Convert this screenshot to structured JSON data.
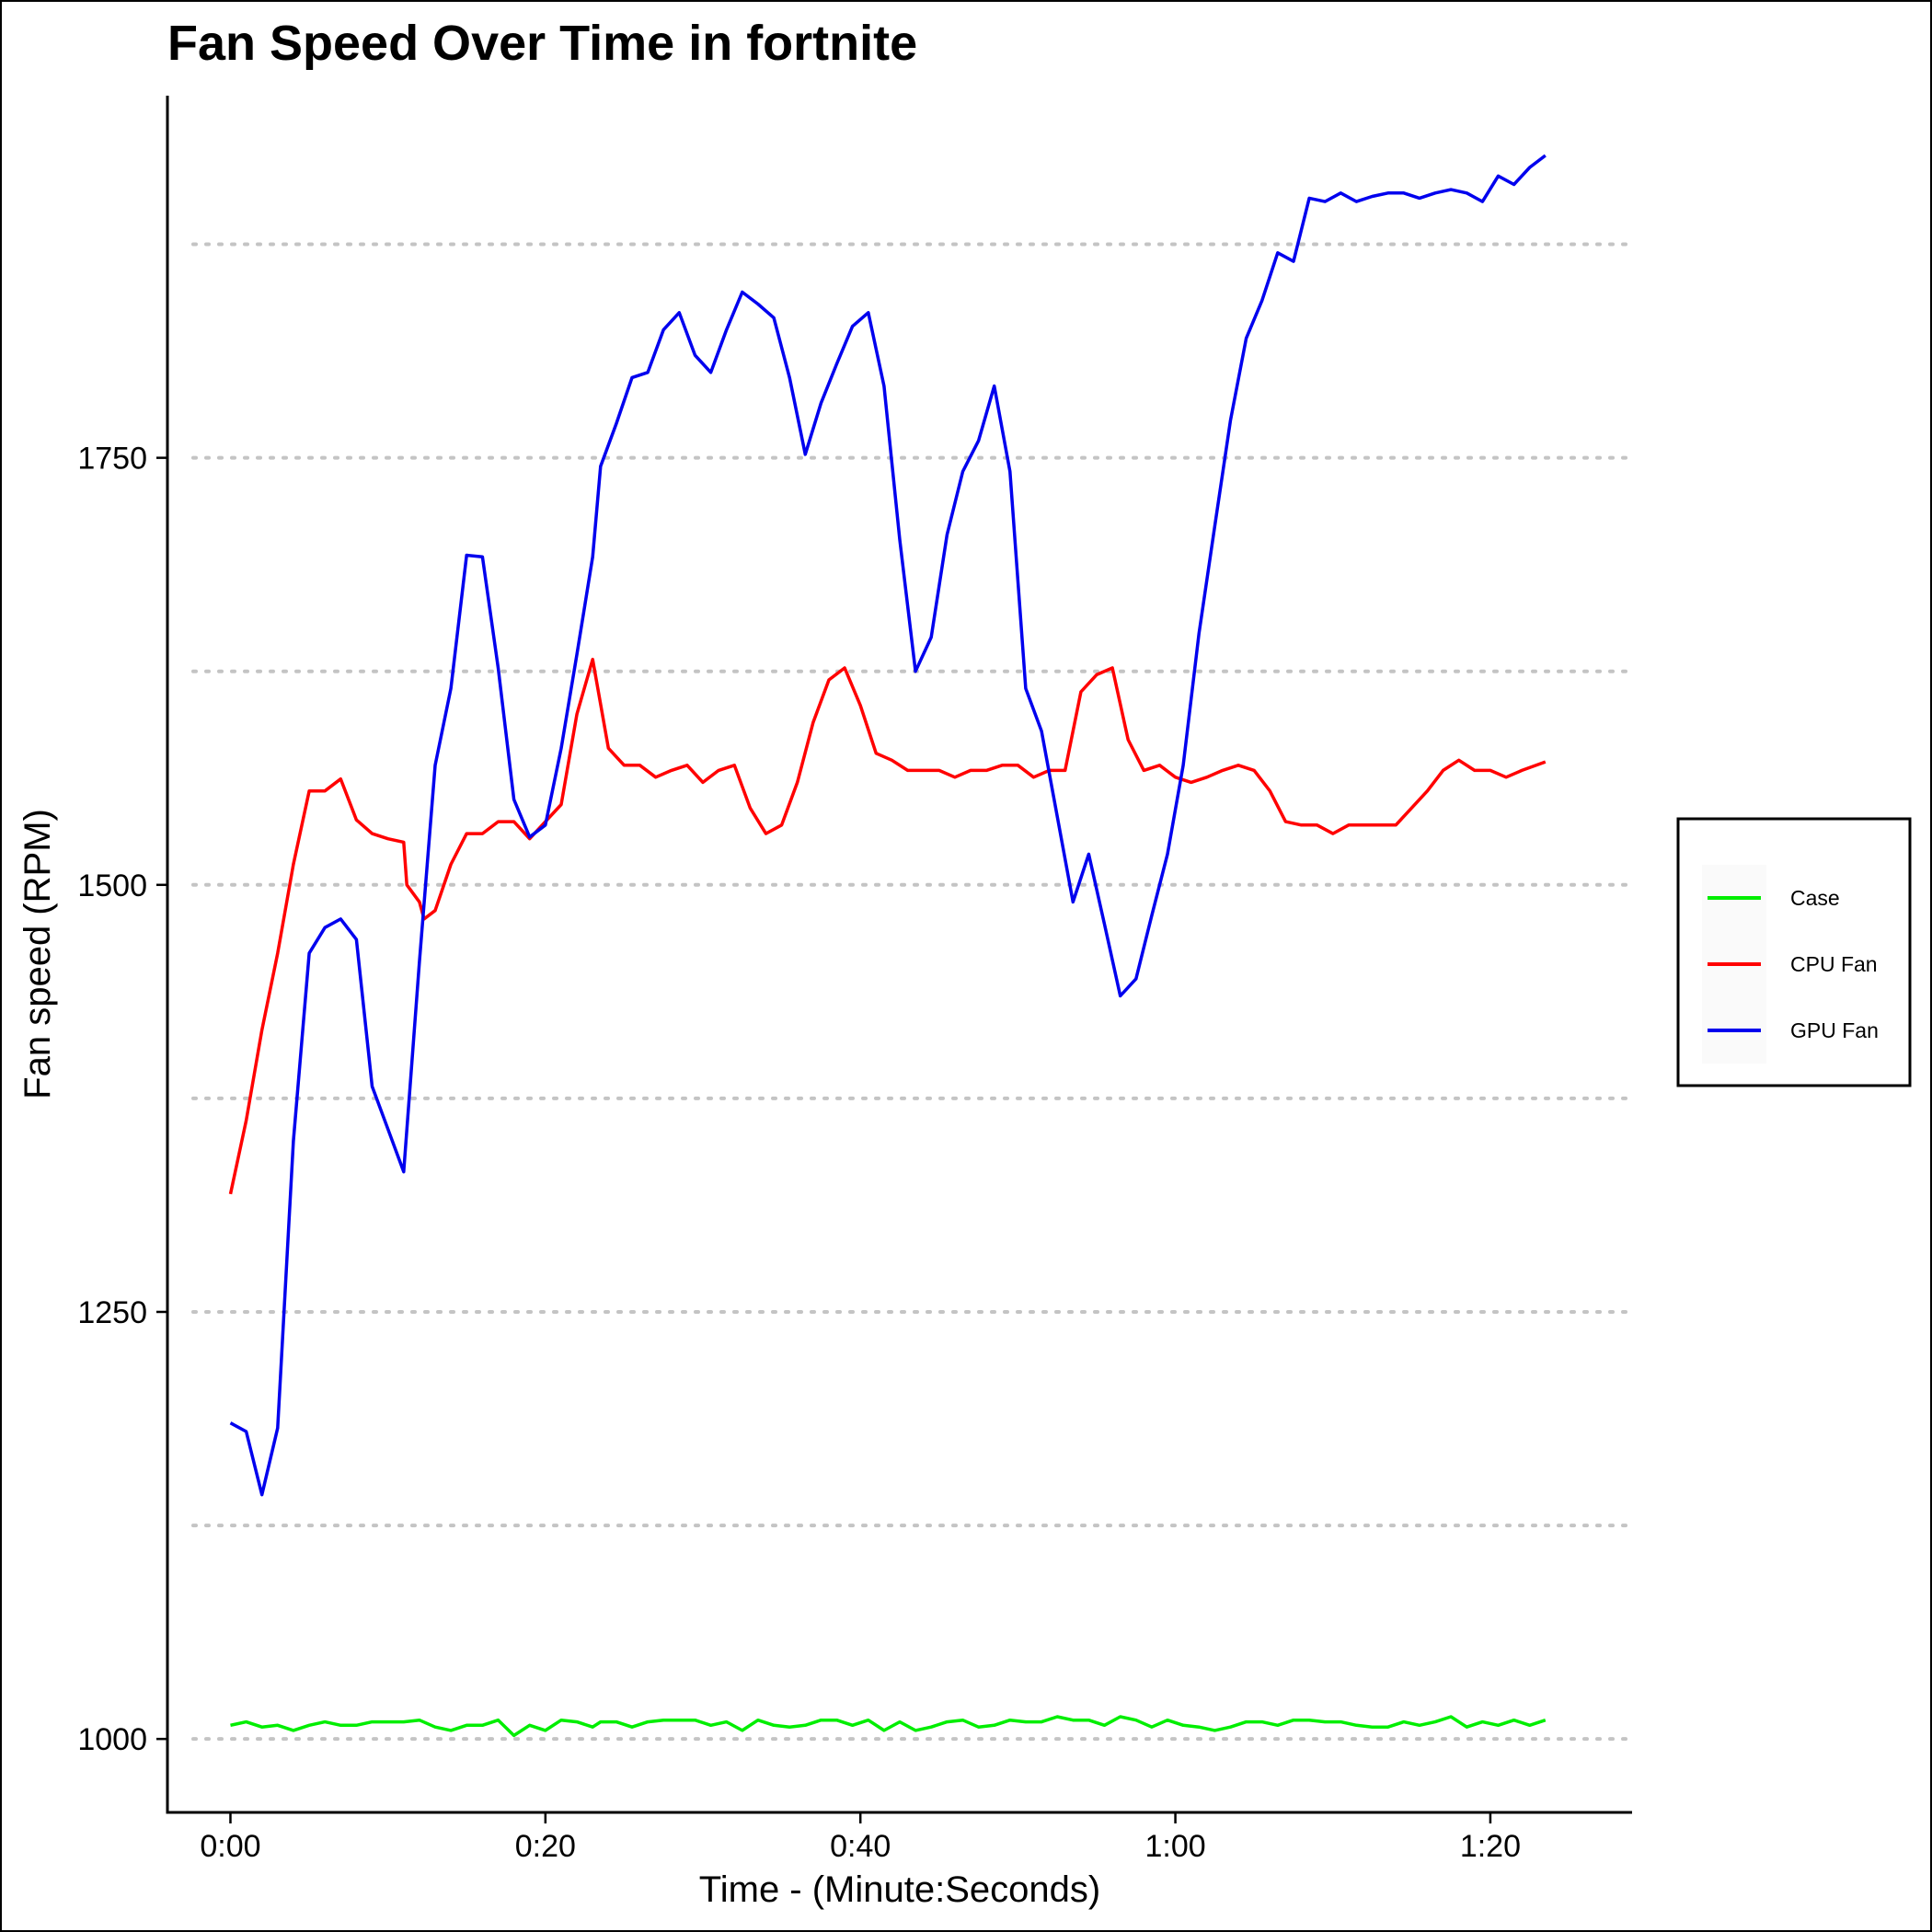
{
  "chart_data": {
    "type": "line",
    "title": "Fan Speed Over Time in fortnite",
    "xlabel": "Time - (Minute:Seconds)",
    "ylabel": "Fan speed (RPM)",
    "xlim": [
      -4,
      89
    ],
    "ylim": [
      957,
      1962
    ],
    "x_ticks": [
      {
        "value": 0,
        "label": "0:00"
      },
      {
        "value": 20,
        "label": "0:20"
      },
      {
        "value": 40,
        "label": "0:40"
      },
      {
        "value": 60,
        "label": "1:00"
      },
      {
        "value": 80,
        "label": "1:20"
      }
    ],
    "y_ticks": [
      {
        "value": 1000,
        "label": "1000"
      },
      {
        "value": 1250,
        "label": "1250"
      },
      {
        "value": 1500,
        "label": "1500"
      },
      {
        "value": 1750,
        "label": "1750"
      }
    ],
    "gridlines_y": [
      1000,
      1125,
      1250,
      1375,
      1500,
      1625,
      1750,
      1875
    ],
    "grid": "horizontal dotted",
    "legend_position": "right",
    "series": [
      {
        "name": "Case",
        "color": "#00ee00",
        "points": [
          [
            0,
            1008
          ],
          [
            1,
            1010
          ],
          [
            2,
            1007
          ],
          [
            3,
            1008
          ],
          [
            4,
            1005
          ],
          [
            5,
            1008
          ],
          [
            6,
            1010
          ],
          [
            7,
            1008
          ],
          [
            8,
            1008
          ],
          [
            9,
            1010
          ],
          [
            10,
            1010
          ],
          [
            11,
            1010
          ],
          [
            12,
            1011
          ],
          [
            13,
            1007
          ],
          [
            14,
            1005
          ],
          [
            15,
            1008
          ],
          [
            16,
            1008
          ],
          [
            17,
            1011
          ],
          [
            18,
            1002
          ],
          [
            19,
            1008
          ],
          [
            20,
            1005
          ],
          [
            21,
            1011
          ],
          [
            22,
            1010
          ],
          [
            23,
            1007
          ],
          [
            23.5,
            1010
          ],
          [
            24.5,
            1010
          ],
          [
            25.5,
            1007
          ],
          [
            26.5,
            1010
          ],
          [
            27.5,
            1011
          ],
          [
            28.5,
            1011
          ],
          [
            29.5,
            1011
          ],
          [
            30.5,
            1008
          ],
          [
            31.5,
            1010
          ],
          [
            32.5,
            1005
          ],
          [
            33.5,
            1011
          ],
          [
            34.5,
            1008
          ],
          [
            35.5,
            1007
          ],
          [
            36.5,
            1008
          ],
          [
            37.5,
            1011
          ],
          [
            38.5,
            1011
          ],
          [
            39.5,
            1008
          ],
          [
            40.5,
            1011
          ],
          [
            41.5,
            1005
          ],
          [
            42.5,
            1010
          ],
          [
            43.5,
            1005
          ],
          [
            44.5,
            1007
          ],
          [
            45.5,
            1010
          ],
          [
            46.5,
            1011
          ],
          [
            47.5,
            1007
          ],
          [
            48.5,
            1008
          ],
          [
            49.5,
            1011
          ],
          [
            50.5,
            1010
          ],
          [
            51.5,
            1010
          ],
          [
            52.5,
            1013
          ],
          [
            53.5,
            1011
          ],
          [
            54.5,
            1011
          ],
          [
            55.5,
            1008
          ],
          [
            56.5,
            1013
          ],
          [
            57.5,
            1011
          ],
          [
            58.5,
            1007
          ],
          [
            59.5,
            1011
          ],
          [
            60.5,
            1008
          ],
          [
            61.5,
            1007
          ],
          [
            62.5,
            1005
          ],
          [
            63.5,
            1007
          ],
          [
            64.5,
            1010
          ],
          [
            65.5,
            1010
          ],
          [
            66.5,
            1008
          ],
          [
            67.5,
            1011
          ],
          [
            68.5,
            1011
          ],
          [
            69.5,
            1010
          ],
          [
            70.5,
            1010
          ],
          [
            71.5,
            1008
          ],
          [
            72.5,
            1007
          ],
          [
            73.5,
            1007
          ],
          [
            74.5,
            1010
          ],
          [
            75.5,
            1008
          ],
          [
            76.5,
            1010
          ],
          [
            77.5,
            1013
          ],
          [
            78.5,
            1007
          ],
          [
            79.5,
            1010
          ],
          [
            80.5,
            1008
          ],
          [
            81.5,
            1011
          ],
          [
            82.5,
            1008
          ],
          [
            83.5,
            1011
          ]
        ]
      },
      {
        "name": "CPU Fan",
        "color": "#ff0000",
        "points": [
          [
            0,
            1319
          ],
          [
            1,
            1362
          ],
          [
            2,
            1415
          ],
          [
            3,
            1460
          ],
          [
            4,
            1512
          ],
          [
            5,
            1555
          ],
          [
            6,
            1555
          ],
          [
            7,
            1562
          ],
          [
            8,
            1538
          ],
          [
            9,
            1530
          ],
          [
            10,
            1527
          ],
          [
            11,
            1525
          ],
          [
            11.2,
            1500
          ],
          [
            12,
            1490
          ],
          [
            12.3,
            1480
          ],
          [
            13,
            1485
          ],
          [
            14,
            1512
          ],
          [
            15,
            1530
          ],
          [
            16,
            1530
          ],
          [
            17,
            1537
          ],
          [
            18,
            1537
          ],
          [
            19,
            1527
          ],
          [
            20,
            1537
          ],
          [
            21,
            1547
          ],
          [
            22,
            1600
          ],
          [
            23,
            1632
          ],
          [
            24,
            1580
          ],
          [
            25,
            1570
          ],
          [
            26,
            1570
          ],
          [
            27,
            1563
          ],
          [
            28,
            1567
          ],
          [
            29,
            1570
          ],
          [
            30,
            1560
          ],
          [
            31,
            1567
          ],
          [
            32,
            1570
          ],
          [
            33,
            1545
          ],
          [
            34,
            1530
          ],
          [
            35,
            1535
          ],
          [
            36,
            1560
          ],
          [
            37,
            1595
          ],
          [
            38,
            1620
          ],
          [
            39,
            1627
          ],
          [
            40,
            1605
          ],
          [
            41,
            1577
          ],
          [
            42,
            1573
          ],
          [
            43,
            1567
          ],
          [
            44,
            1567
          ],
          [
            45,
            1567
          ],
          [
            46,
            1563
          ],
          [
            47,
            1567
          ],
          [
            48,
            1567
          ],
          [
            49,
            1570
          ],
          [
            50,
            1570
          ],
          [
            51,
            1563
          ],
          [
            52,
            1567
          ],
          [
            53,
            1567
          ],
          [
            54,
            1613
          ],
          [
            55,
            1623
          ],
          [
            56,
            1627
          ],
          [
            57,
            1585
          ],
          [
            58,
            1567
          ],
          [
            59,
            1570
          ],
          [
            60,
            1563
          ],
          [
            61,
            1560
          ],
          [
            62,
            1563
          ],
          [
            63,
            1567
          ],
          [
            64,
            1570
          ],
          [
            65,
            1567
          ],
          [
            66,
            1555
          ],
          [
            67,
            1537
          ],
          [
            68,
            1535
          ],
          [
            69,
            1535
          ],
          [
            70,
            1530
          ],
          [
            71,
            1535
          ],
          [
            72,
            1535
          ],
          [
            73,
            1535
          ],
          [
            74,
            1535
          ],
          [
            75,
            1545
          ],
          [
            76,
            1555
          ],
          [
            77,
            1567
          ],
          [
            78,
            1573
          ],
          [
            79,
            1567
          ],
          [
            80,
            1567
          ],
          [
            81,
            1563
          ],
          [
            82,
            1567
          ],
          [
            83.5,
            1572
          ]
        ]
      },
      {
        "name": "GPU Fan",
        "color": "#0000ee",
        "points": [
          [
            0,
            1185
          ],
          [
            1,
            1180
          ],
          [
            2,
            1143
          ],
          [
            3,
            1182
          ],
          [
            4,
            1350
          ],
          [
            5,
            1460
          ],
          [
            6,
            1475
          ],
          [
            7,
            1480
          ],
          [
            8,
            1468
          ],
          [
            9,
            1382
          ],
          [
            10,
            1357
          ],
          [
            11,
            1332
          ],
          [
            12,
            1455
          ],
          [
            13,
            1570
          ],
          [
            14,
            1615
          ],
          [
            15,
            1693
          ],
          [
            16,
            1692
          ],
          [
            17,
            1627
          ],
          [
            18,
            1550
          ],
          [
            19,
            1528
          ],
          [
            20,
            1535
          ],
          [
            21,
            1580
          ],
          [
            22,
            1635
          ],
          [
            23,
            1692
          ],
          [
            23.5,
            1745
          ],
          [
            24.5,
            1770
          ],
          [
            25.5,
            1797
          ],
          [
            26.5,
            1800
          ],
          [
            27.5,
            1825
          ],
          [
            28.5,
            1835
          ],
          [
            29.5,
            1810
          ],
          [
            30.5,
            1800
          ],
          [
            31.5,
            1825
          ],
          [
            32.5,
            1847
          ],
          [
            33.5,
            1840
          ],
          [
            34.5,
            1832
          ],
          [
            35.5,
            1797
          ],
          [
            36.5,
            1752
          ],
          [
            37.5,
            1782
          ],
          [
            38.5,
            1805
          ],
          [
            39.5,
            1827
          ],
          [
            40.5,
            1835
          ],
          [
            41.5,
            1792
          ],
          [
            42.5,
            1702
          ],
          [
            43.5,
            1625
          ],
          [
            44.5,
            1645
          ],
          [
            45.5,
            1705
          ],
          [
            46.5,
            1742
          ],
          [
            47.5,
            1760
          ],
          [
            48.5,
            1792
          ],
          [
            49.5,
            1742
          ],
          [
            50.5,
            1615
          ],
          [
            51.5,
            1590
          ],
          [
            52.5,
            1540
          ],
          [
            53.5,
            1490
          ],
          [
            54.5,
            1518
          ],
          [
            55.5,
            1477
          ],
          [
            56.5,
            1435
          ],
          [
            57.5,
            1445
          ],
          [
            58.5,
            1482
          ],
          [
            59.5,
            1518
          ],
          [
            60.5,
            1570
          ],
          [
            61.5,
            1647
          ],
          [
            62.5,
            1710
          ],
          [
            63.5,
            1772
          ],
          [
            64.5,
            1820
          ],
          [
            65.5,
            1842
          ],
          [
            66.5,
            1870
          ],
          [
            67.5,
            1865
          ],
          [
            68.5,
            1902
          ],
          [
            69.5,
            1900
          ],
          [
            70.5,
            1905
          ],
          [
            71.5,
            1900
          ],
          [
            72.5,
            1903
          ],
          [
            73.5,
            1905
          ],
          [
            74.5,
            1905
          ],
          [
            75.5,
            1902
          ],
          [
            76.5,
            1905
          ],
          [
            77.5,
            1907
          ],
          [
            78.5,
            1905
          ],
          [
            79.5,
            1900
          ],
          [
            80.5,
            1915
          ],
          [
            81.5,
            1910
          ],
          [
            82.5,
            1920
          ],
          [
            83.5,
            1927
          ]
        ]
      }
    ]
  }
}
